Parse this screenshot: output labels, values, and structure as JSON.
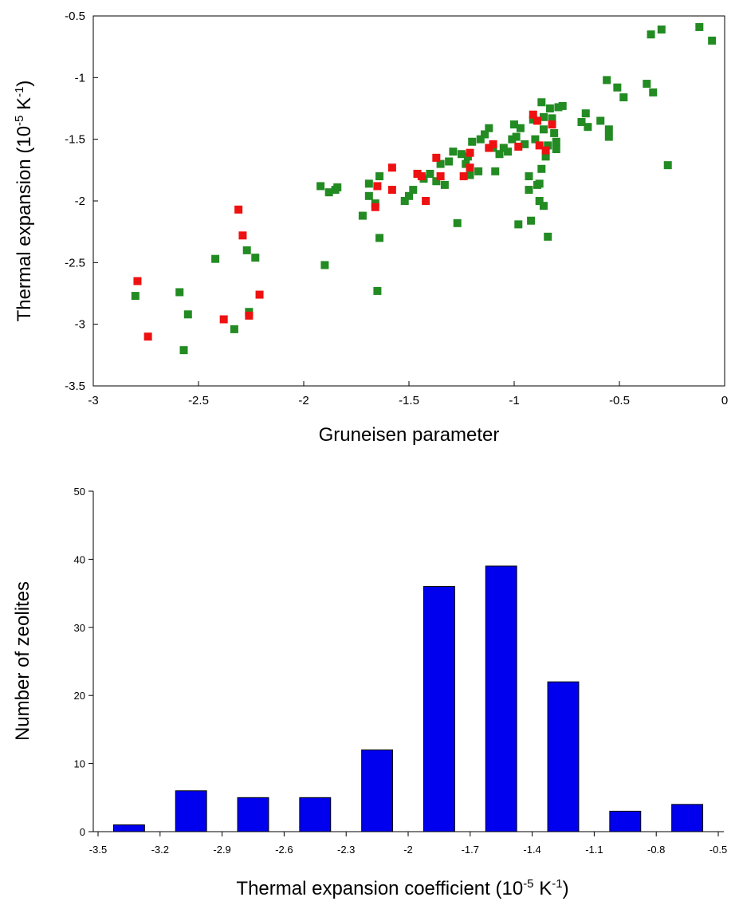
{
  "chart_data": [
    {
      "type": "scatter",
      "xlabel": "Gruneisen parameter",
      "ylabel_parts": [
        "Thermal expansion (10",
        "-5",
        " K",
        "-1",
        ")"
      ],
      "xlim": [
        -3,
        0
      ],
      "ylim": [
        -3.5,
        -0.5
      ],
      "xticks": [
        "-3",
        "-2.5",
        "-2",
        "-1.5",
        "-1",
        "-0.5",
        "0"
      ],
      "yticks": [
        "-3.5",
        "-3",
        "-2.5",
        "-2",
        "-1.5",
        "-1",
        "-0.5"
      ],
      "grid": false,
      "colors": {
        "green": "#228B22",
        "red": "#EE1111"
      },
      "series": [
        {
          "color": "green",
          "points": [
            [
              -2.8,
              -2.77
            ],
            [
              -2.59,
              -2.74
            ],
            [
              -2.55,
              -2.92
            ],
            [
              -2.57,
              -3.21
            ],
            [
              -2.42,
              -2.47
            ],
            [
              -2.33,
              -3.04
            ],
            [
              -2.27,
              -2.4
            ],
            [
              -2.26,
              -2.9
            ],
            [
              -2.23,
              -2.46
            ],
            [
              -1.92,
              -1.88
            ],
            [
              -1.9,
              -2.52
            ],
            [
              -1.88,
              -1.93
            ],
            [
              -1.85,
              -1.91
            ],
            [
              -1.84,
              -1.89
            ],
            [
              -1.72,
              -2.12
            ],
            [
              -1.69,
              -1.96
            ],
            [
              -1.69,
              -1.86
            ],
            [
              -1.66,
              -2.02
            ],
            [
              -1.64,
              -1.8
            ],
            [
              -1.64,
              -2.3
            ],
            [
              -1.65,
              -2.73
            ],
            [
              -1.52,
              -2.0
            ],
            [
              -1.5,
              -1.96
            ],
            [
              -1.48,
              -1.91
            ],
            [
              -1.46,
              -1.78
            ],
            [
              -1.43,
              -1.82
            ],
            [
              -1.4,
              -1.78
            ],
            [
              -1.37,
              -1.84
            ],
            [
              -1.35,
              -1.7
            ],
            [
              -1.33,
              -1.87
            ],
            [
              -1.31,
              -1.68
            ],
            [
              -1.29,
              -1.6
            ],
            [
              -1.27,
              -2.18
            ],
            [
              -1.25,
              -1.62
            ],
            [
              -1.23,
              -1.7
            ],
            [
              -1.22,
              -1.64
            ],
            [
              -1.21,
              -1.79
            ],
            [
              -1.2,
              -1.52
            ],
            [
              -1.17,
              -1.76
            ],
            [
              -1.16,
              -1.5
            ],
            [
              -1.14,
              -1.46
            ],
            [
              -1.12,
              -1.41
            ],
            [
              -1.1,
              -1.57
            ],
            [
              -1.09,
              -1.76
            ],
            [
              -1.07,
              -1.62
            ],
            [
              -1.05,
              -1.57
            ],
            [
              -1.03,
              -1.6
            ],
            [
              -1.01,
              -1.5
            ],
            [
              -1.0,
              -1.38
            ],
            [
              -0.99,
              -1.48
            ],
            [
              -0.98,
              -2.19
            ],
            [
              -0.97,
              -1.41
            ],
            [
              -0.95,
              -1.54
            ],
            [
              -0.93,
              -1.8
            ],
            [
              -0.93,
              -1.91
            ],
            [
              -0.92,
              -2.16
            ],
            [
              -0.91,
              -1.34
            ],
            [
              -0.9,
              -1.5
            ],
            [
              -0.89,
              -1.87
            ],
            [
              -0.88,
              -2.0
            ],
            [
              -0.88,
              -1.86
            ],
            [
              -0.87,
              -1.2
            ],
            [
              -0.86,
              -1.32
            ],
            [
              -0.86,
              -1.42
            ],
            [
              -0.87,
              -1.74
            ],
            [
              -0.86,
              -2.04
            ],
            [
              -0.85,
              -1.64
            ],
            [
              -0.84,
              -1.55
            ],
            [
              -0.84,
              -2.29
            ],
            [
              -0.83,
              -1.25
            ],
            [
              -0.82,
              -1.33
            ],
            [
              -0.81,
              -1.45
            ],
            [
              -0.8,
              -1.52
            ],
            [
              -0.8,
              -1.58
            ],
            [
              -0.79,
              -1.24
            ],
            [
              -0.77,
              -1.23
            ],
            [
              -0.68,
              -1.36
            ],
            [
              -0.66,
              -1.29
            ],
            [
              -0.65,
              -1.4
            ],
            [
              -0.59,
              -1.35
            ],
            [
              -0.56,
              -1.02
            ],
            [
              -0.55,
              -1.42
            ],
            [
              -0.55,
              -1.48
            ],
            [
              -0.51,
              -1.08
            ],
            [
              -0.48,
              -1.16
            ],
            [
              -0.37,
              -1.05
            ],
            [
              -0.35,
              -0.65
            ],
            [
              -0.34,
              -1.12
            ],
            [
              -0.3,
              -0.61
            ],
            [
              -0.27,
              -1.71
            ],
            [
              -0.12,
              -0.59
            ],
            [
              -0.06,
              -0.7
            ]
          ]
        },
        {
          "color": "red",
          "points": [
            [
              -2.79,
              -2.65
            ],
            [
              -2.74,
              -3.1
            ],
            [
              -2.38,
              -2.96
            ],
            [
              -2.31,
              -2.07
            ],
            [
              -2.29,
              -2.28
            ],
            [
              -2.26,
              -2.93
            ],
            [
              -2.21,
              -2.76
            ],
            [
              -1.66,
              -2.05
            ],
            [
              -1.65,
              -1.88
            ],
            [
              -1.58,
              -1.73
            ],
            [
              -1.58,
              -1.91
            ],
            [
              -1.46,
              -1.78
            ],
            [
              -1.44,
              -1.8
            ],
            [
              -1.42,
              -2.0
            ],
            [
              -1.37,
              -1.65
            ],
            [
              -1.35,
              -1.8
            ],
            [
              -1.24,
              -1.8
            ],
            [
              -1.21,
              -1.73
            ],
            [
              -1.21,
              -1.61
            ],
            [
              -1.12,
              -1.57
            ],
            [
              -1.1,
              -1.54
            ],
            [
              -0.98,
              -1.56
            ],
            [
              -0.91,
              -1.3
            ],
            [
              -0.89,
              -1.35
            ],
            [
              -0.88,
              -1.55
            ],
            [
              -0.85,
              -1.59
            ],
            [
              -0.82,
              -1.38
            ]
          ]
        }
      ]
    },
    {
      "type": "bar",
      "xlabel_parts": [
        "Thermal expansion coefficient (10",
        "-5",
        " K",
        "-1",
        ")"
      ],
      "ylabel": "Number of zeolites",
      "xlim": [
        -3.5,
        -0.5
      ],
      "ylim": [
        0,
        50
      ],
      "xticks": [
        "-3.5",
        "-3.2",
        "-2.9",
        "-2.6",
        "-2.3",
        "-2",
        "-1.7",
        "-1.4",
        "-1.1",
        "-0.8",
        "-0.5"
      ],
      "yticks": [
        "0",
        "10",
        "20",
        "30",
        "40",
        "50"
      ],
      "bar_color": "#0000EE",
      "bar_width": 0.15,
      "bins": [
        {
          "center": -3.35,
          "value": 1
        },
        {
          "center": -3.05,
          "value": 6
        },
        {
          "center": -2.75,
          "value": 5
        },
        {
          "center": -2.45,
          "value": 5
        },
        {
          "center": -2.15,
          "value": 12
        },
        {
          "center": -1.85,
          "value": 36
        },
        {
          "center": -1.55,
          "value": 39
        },
        {
          "center": -1.25,
          "value": 22
        },
        {
          "center": -0.95,
          "value": 3
        },
        {
          "center": -0.65,
          "value": 4
        }
      ]
    }
  ]
}
